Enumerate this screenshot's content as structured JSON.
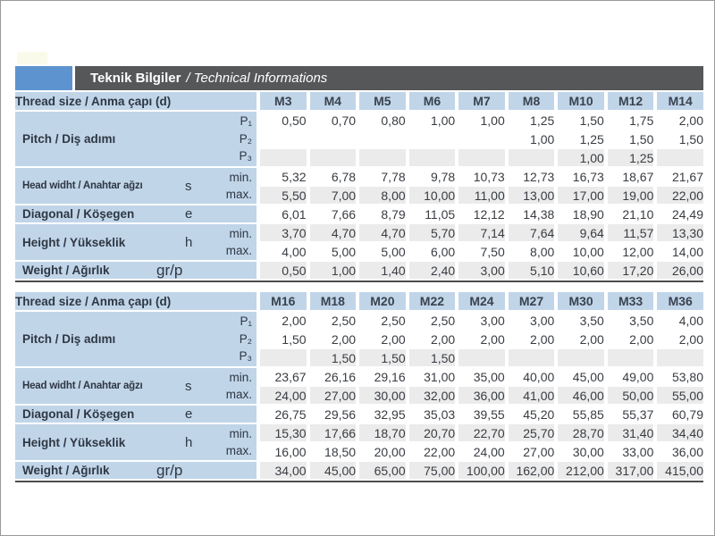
{
  "title": {
    "bold": "Teknik Bilgiler",
    "italic": "/ Technical Informations"
  },
  "colors": {
    "accent_blue": "#5d94cf",
    "title_bar_bg": "#565759",
    "title_text": "#ffffff",
    "label_cell_bg": "#c1d5e9",
    "stripe_gray": "#ebebeb",
    "rule_dark": "#4c4d4f"
  },
  "tables": [
    {
      "header_label": "Thread size / Anma çapı (d)",
      "columns": [
        "M3",
        "M4",
        "M5",
        "M6",
        "M7",
        "M8",
        "M10",
        "M12",
        "M14"
      ],
      "groups": [
        {
          "label": "Pitch / Diş adımı",
          "symbol": "",
          "rows": [
            {
              "sub": "P₁",
              "shade": "white",
              "values": [
                "0,50",
                "0,70",
                "0,80",
                "1,00",
                "1,00",
                "1,25",
                "1,50",
                "1,75",
                "2,00"
              ]
            },
            {
              "sub": "P₂",
              "shade": "white",
              "values": [
                "",
                "",
                "",
                "",
                "",
                "1,00",
                "1,25",
                "1,50",
                "1,50"
              ]
            },
            {
              "sub": "P₃",
              "shade": "gray",
              "values": [
                "",
                "",
                "",
                "",
                "",
                "",
                "1,00",
                "1,25",
                ""
              ]
            }
          ]
        },
        {
          "label": "Head widht / Anahtar ağzı",
          "symbol": "s",
          "rows": [
            {
              "sub": "min.",
              "shade": "white",
              "values": [
                "5,32",
                "6,78",
                "7,78",
                "9,78",
                "10,73",
                "12,73",
                "16,73",
                "18,67",
                "21,67"
              ]
            },
            {
              "sub": "max.",
              "shade": "gray",
              "values": [
                "5,50",
                "7,00",
                "8,00",
                "10,00",
                "11,00",
                "13,00",
                "17,00",
                "19,00",
                "22,00"
              ]
            }
          ]
        },
        {
          "label": "Diagonal / Köşegen",
          "symbol": "e",
          "rows": [
            {
              "sub": "",
              "shade": "white",
              "values": [
                "6,01",
                "7,66",
                "8,79",
                "11,05",
                "12,12",
                "14,38",
                "18,90",
                "21,10",
                "24,49"
              ]
            }
          ]
        },
        {
          "label": "Height / Yükseklik",
          "symbol": "h",
          "rows": [
            {
              "sub": "min.",
              "shade": "gray",
              "values": [
                "3,70",
                "4,70",
                "4,70",
                "5,70",
                "7,14",
                "7,64",
                "9,64",
                "11,57",
                "13,30"
              ]
            },
            {
              "sub": "max.",
              "shade": "white",
              "values": [
                "4,00",
                "5,00",
                "5,00",
                "6,00",
                "7,50",
                "8,00",
                "10,00",
                "12,00",
                "14,00"
              ]
            }
          ]
        },
        {
          "label": "Weight / Ağırlık",
          "symbol": "gr/p",
          "rows": [
            {
              "sub": "",
              "shade": "gray",
              "values": [
                "0,50",
                "1,00",
                "1,40",
                "2,40",
                "3,00",
                "5,10",
                "10,60",
                "17,20",
                "26,00"
              ]
            }
          ]
        }
      ]
    },
    {
      "header_label": "Thread size / Anma çapı (d)",
      "columns": [
        "M16",
        "M18",
        "M20",
        "M22",
        "M24",
        "M27",
        "M30",
        "M33",
        "M36"
      ],
      "groups": [
        {
          "label": "Pitch / Diş adımı",
          "symbol": "",
          "rows": [
            {
              "sub": "P₁",
              "shade": "white",
              "values": [
                "2,00",
                "2,50",
                "2,50",
                "2,50",
                "3,00",
                "3,00",
                "3,50",
                "3,50",
                "4,00"
              ]
            },
            {
              "sub": "P₂",
              "shade": "white",
              "values": [
                "1,50",
                "2,00",
                "2,00",
                "2,00",
                "2,00",
                "2,00",
                "2,00",
                "2,00",
                "2,00"
              ]
            },
            {
              "sub": "P₃",
              "shade": "gray",
              "values": [
                "",
                "1,50",
                "1,50",
                "1,50",
                "",
                "",
                "",
                "",
                ""
              ]
            }
          ]
        },
        {
          "label": "Head widht / Anahtar ağzı",
          "symbol": "s",
          "rows": [
            {
              "sub": "min.",
              "shade": "white",
              "values": [
                "23,67",
                "26,16",
                "29,16",
                "31,00",
                "35,00",
                "40,00",
                "45,00",
                "49,00",
                "53,80"
              ]
            },
            {
              "sub": "max.",
              "shade": "gray",
              "values": [
                "24,00",
                "27,00",
                "30,00",
                "32,00",
                "36,00",
                "41,00",
                "46,00",
                "50,00",
                "55,00"
              ]
            }
          ]
        },
        {
          "label": "Diagonal / Köşegen",
          "symbol": "e",
          "rows": [
            {
              "sub": "",
              "shade": "white",
              "values": [
                "26,75",
                "29,56",
                "32,95",
                "35,03",
                "39,55",
                "45,20",
                "55,85",
                "55,37",
                "60,79"
              ]
            }
          ]
        },
        {
          "label": "Height / Yükseklik",
          "symbol": "h",
          "rows": [
            {
              "sub": "min.",
              "shade": "gray",
              "values": [
                "15,30",
                "17,66",
                "18,70",
                "20,70",
                "22,70",
                "25,70",
                "28,70",
                "31,40",
                "34,40"
              ]
            },
            {
              "sub": "max.",
              "shade": "white",
              "values": [
                "16,00",
                "18,50",
                "20,00",
                "22,00",
                "24,00",
                "27,00",
                "30,00",
                "33,00",
                "36,00"
              ]
            }
          ]
        },
        {
          "label": "Weight / Ağırlık",
          "symbol": "gr/p",
          "rows": [
            {
              "sub": "",
              "shade": "gray",
              "values": [
                "34,00",
                "45,00",
                "65,00",
                "75,00",
                "100,00",
                "162,00",
                "212,00",
                "317,00",
                "415,00"
              ]
            }
          ]
        }
      ]
    }
  ]
}
